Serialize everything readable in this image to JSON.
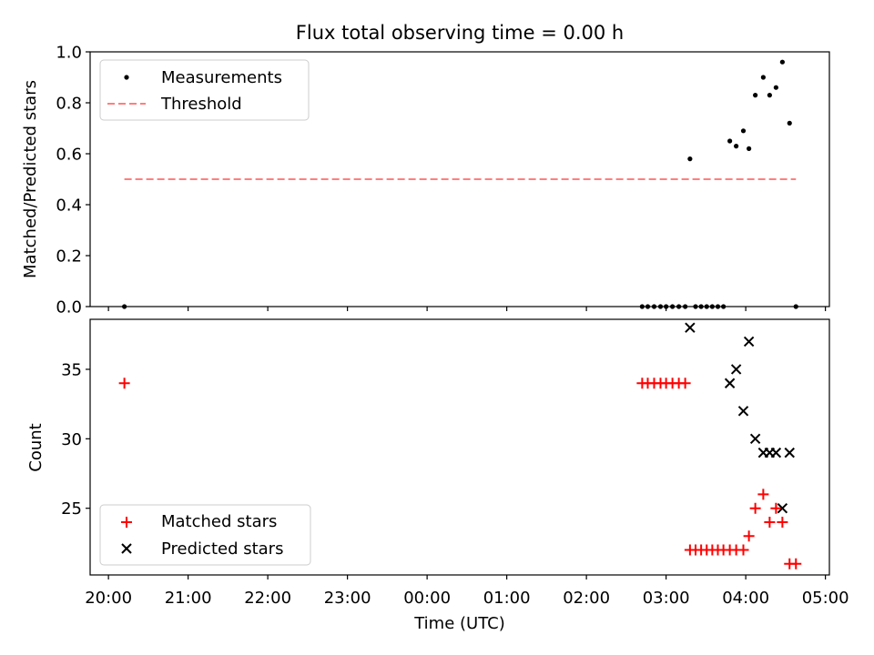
{
  "title": "Flux total observing time = 0.00 h",
  "xlabel": "Time (UTC)",
  "xticks": [
    "20:00",
    "21:00",
    "22:00",
    "23:00",
    "00:00",
    "01:00",
    "02:00",
    "03:00",
    "04:00",
    "05:00"
  ],
  "colors": {
    "measurements": "#000000",
    "threshold": "#ff7f7f",
    "matched": "#ff0000",
    "predicted": "#000000"
  },
  "chart_data": [
    {
      "type": "scatter",
      "ylabel": "Matched/Predicted stars",
      "x_unit": "hours since 20:00 UTC",
      "xlim": [
        -0.23,
        9.05
      ],
      "ylim": [
        0,
        1
      ],
      "yticks": [
        "0.0",
        "0.2",
        "0.4",
        "0.6",
        "0.8",
        "1.0"
      ],
      "legend": {
        "position": "upper-left",
        "entries": [
          "Measurements",
          "Threshold"
        ]
      },
      "series": [
        {
          "name": "Measurements",
          "marker": "dot",
          "points": [
            [
              0.2,
              0.0
            ],
            [
              6.7,
              0.0
            ],
            [
              6.77,
              0.0
            ],
            [
              6.85,
              0.0
            ],
            [
              6.93,
              0.0
            ],
            [
              7.0,
              0.0
            ],
            [
              7.08,
              0.0
            ],
            [
              7.16,
              0.0
            ],
            [
              7.24,
              0.0
            ],
            [
              7.3,
              0.58
            ],
            [
              7.37,
              0.0
            ],
            [
              7.44,
              0.0
            ],
            [
              7.51,
              0.0
            ],
            [
              7.58,
              0.0
            ],
            [
              7.65,
              0.0
            ],
            [
              7.72,
              0.0
            ],
            [
              7.8,
              0.65
            ],
            [
              7.88,
              0.63
            ],
            [
              7.97,
              0.69
            ],
            [
              8.04,
              0.62
            ],
            [
              8.12,
              0.83
            ],
            [
              8.22,
              0.9
            ],
            [
              8.3,
              0.83
            ],
            [
              8.38,
              0.86
            ],
            [
              8.46,
              0.96
            ],
            [
              8.55,
              0.72
            ],
            [
              8.63,
              0.0
            ]
          ]
        },
        {
          "name": "Threshold",
          "style": "dashed",
          "points": [
            [
              0.2,
              0.5
            ],
            [
              8.63,
              0.5
            ]
          ]
        }
      ]
    },
    {
      "type": "scatter",
      "ylabel": "Count",
      "x_unit": "hours since 20:00 UTC",
      "xlim": [
        -0.23,
        9.05
      ],
      "ylim": [
        20.2,
        38.6
      ],
      "yticks": [
        "25",
        "30",
        "35"
      ],
      "legend": {
        "position": "lower-left",
        "entries": [
          "Matched stars",
          "Predicted stars"
        ]
      },
      "series": [
        {
          "name": "Matched stars",
          "marker": "plus",
          "points": [
            [
              0.2,
              34
            ],
            [
              6.7,
              34
            ],
            [
              6.77,
              34
            ],
            [
              6.85,
              34
            ],
            [
              6.93,
              34
            ],
            [
              7.0,
              34
            ],
            [
              7.08,
              34
            ],
            [
              7.16,
              34
            ],
            [
              7.24,
              34
            ],
            [
              7.3,
              22
            ],
            [
              7.37,
              22
            ],
            [
              7.44,
              22
            ],
            [
              7.51,
              22
            ],
            [
              7.58,
              22
            ],
            [
              7.65,
              22
            ],
            [
              7.72,
              22
            ],
            [
              7.8,
              22
            ],
            [
              7.88,
              22
            ],
            [
              7.97,
              22
            ],
            [
              8.04,
              23
            ],
            [
              8.12,
              25
            ],
            [
              8.22,
              26
            ],
            [
              8.3,
              24
            ],
            [
              8.38,
              25
            ],
            [
              8.46,
              24
            ],
            [
              8.55,
              21
            ],
            [
              8.63,
              21
            ]
          ]
        },
        {
          "name": "Predicted stars",
          "marker": "x",
          "points": [
            [
              7.3,
              38
            ],
            [
              7.8,
              34
            ],
            [
              7.88,
              35
            ],
            [
              7.97,
              32
            ],
            [
              8.04,
              37
            ],
            [
              8.12,
              30
            ],
            [
              8.22,
              29
            ],
            [
              8.3,
              29
            ],
            [
              8.38,
              29
            ],
            [
              8.46,
              25
            ],
            [
              8.55,
              29
            ]
          ]
        }
      ]
    }
  ]
}
